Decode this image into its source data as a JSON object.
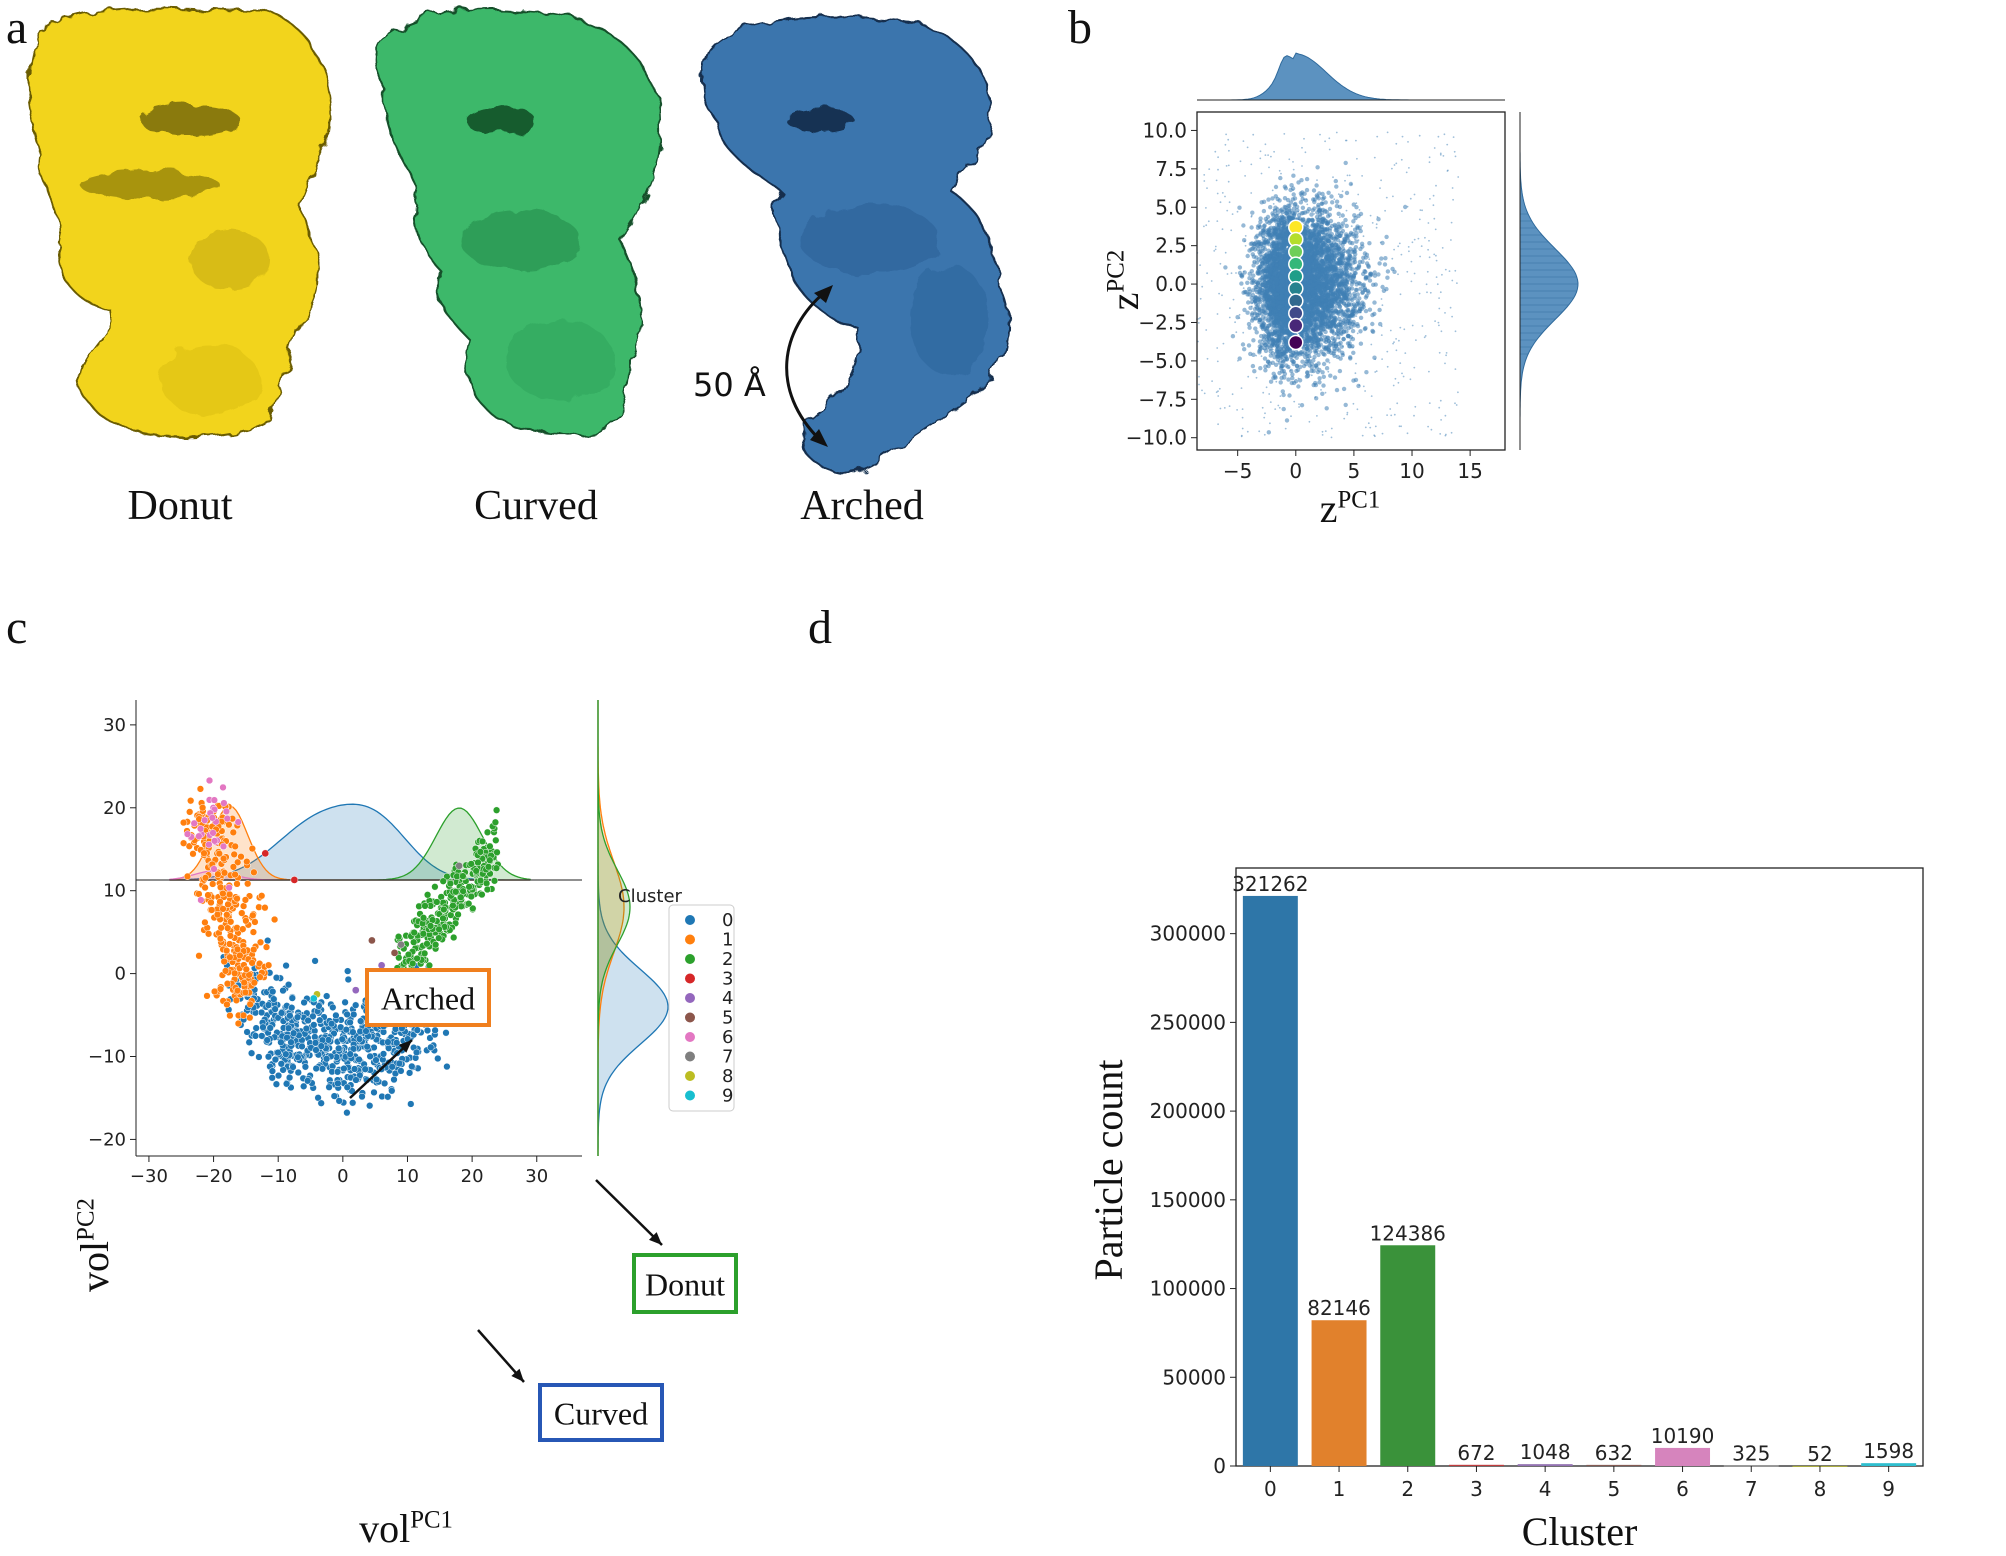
{
  "panels": {
    "a": "a",
    "b": "b",
    "c": "c",
    "d": "d"
  },
  "panel_a": {
    "captions": [
      "Donut",
      "Curved",
      "Arched"
    ],
    "annotation": "50 Å",
    "colors": {
      "donut": "#f2d41c",
      "curved": "#3cb86a",
      "arched": "#3b74ad"
    }
  },
  "chart_data": [
    {
      "type": "scatter",
      "panel": "b",
      "xlabel_base": "z",
      "xlabel_sup": "PC1",
      "ylabel_base": "z",
      "ylabel_sup": "PC2",
      "xlim": [
        -8.5,
        18
      ],
      "ylim": [
        -10.8,
        11.2
      ],
      "xticks": [
        -5,
        0,
        5,
        10,
        15
      ],
      "yticks": [
        -10.0,
        -7.5,
        -5.0,
        -2.5,
        0.0,
        2.5,
        5.0,
        7.5,
        10.0
      ],
      "cloud_color": "#3f7fb5",
      "trajectory": {
        "x": [
          0,
          0,
          0,
          0,
          0,
          0,
          0,
          0,
          0,
          0
        ],
        "y": [
          3.7,
          2.9,
          2.1,
          1.3,
          0.5,
          -0.3,
          -1.1,
          -1.9,
          -2.7,
          -3.8
        ],
        "colors": [
          "#fde725",
          "#b5de2b",
          "#6ece58",
          "#35b779",
          "#1f9e89",
          "#26828e",
          "#31688e",
          "#3e4989",
          "#482878",
          "#440154"
        ]
      },
      "x_marginal": "peak near 0",
      "y_marginal": "peak near 0"
    },
    {
      "type": "scatter",
      "panel": "c",
      "xlabel_base": "vol",
      "xlabel_sup": "PC1",
      "ylabel_base": "vol",
      "ylabel_sup": "PC2",
      "xlim": [
        -32,
        37
      ],
      "ylim": [
        -22,
        33
      ],
      "xticks": [
        -30,
        -20,
        -10,
        0,
        10,
        20,
        30
      ],
      "yticks": [
        -20,
        -10,
        0,
        10,
        20,
        30
      ],
      "legend_title": "Cluster",
      "legend_placement": "top-right",
      "legend": [
        {
          "name": "0",
          "color": "#1f77b4"
        },
        {
          "name": "1",
          "color": "#ff7f0e"
        },
        {
          "name": "2",
          "color": "#2ca02c"
        },
        {
          "name": "3",
          "color": "#d62728"
        },
        {
          "name": "4",
          "color": "#9467bd"
        },
        {
          "name": "5",
          "color": "#8c564b"
        },
        {
          "name": "6",
          "color": "#e377c2"
        },
        {
          "name": "7",
          "color": "#7f7f7f"
        },
        {
          "name": "8",
          "color": "#bcbd22"
        },
        {
          "name": "9",
          "color": "#17becf"
        }
      ],
      "annotations": [
        {
          "text": "Arched",
          "color": "#f07f1e"
        },
        {
          "text": "Donut",
          "color": "#2ca02c"
        },
        {
          "text": "Curved",
          "color": "#2757b5"
        }
      ],
      "outliers": [
        {
          "x": -12,
          "y": 14.5,
          "cluster": "3"
        },
        {
          "x": -7.5,
          "y": 11.3,
          "cluster": "3"
        },
        {
          "x": 4.5,
          "y": 4,
          "cluster": "5"
        },
        {
          "x": 8,
          "y": 2.5,
          "cluster": "5"
        },
        {
          "x": 18,
          "y": 13,
          "cluster": "7"
        },
        {
          "x": 9,
          "y": 3.5,
          "cluster": "7"
        },
        {
          "x": -4,
          "y": -2.5,
          "cluster": "8"
        },
        {
          "x": -4.5,
          "y": -3,
          "cluster": "9"
        },
        {
          "x": 2,
          "y": -2,
          "cluster": "4"
        },
        {
          "x": 6,
          "y": 1,
          "cluster": "4"
        }
      ]
    },
    {
      "type": "bar",
      "panel": "d",
      "categories": [
        "0",
        "1",
        "2",
        "3",
        "4",
        "5",
        "6",
        "7",
        "8",
        "9"
      ],
      "values": [
        321262,
        82146,
        124386,
        672,
        1048,
        632,
        10190,
        325,
        52,
        1598
      ],
      "colors": [
        "#2e76a8",
        "#e1812c",
        "#3a923a",
        "#c03d3e",
        "#9372b2",
        "#845b53",
        "#d684bd",
        "#7f7f7f",
        "#a9aa35",
        "#2ebece"
      ],
      "xlabel": "Cluster",
      "ylabel": "Particle count",
      "ylim": [
        0,
        337000
      ],
      "yticks": [
        0,
        50000,
        100000,
        150000,
        200000,
        250000,
        300000
      ]
    }
  ]
}
